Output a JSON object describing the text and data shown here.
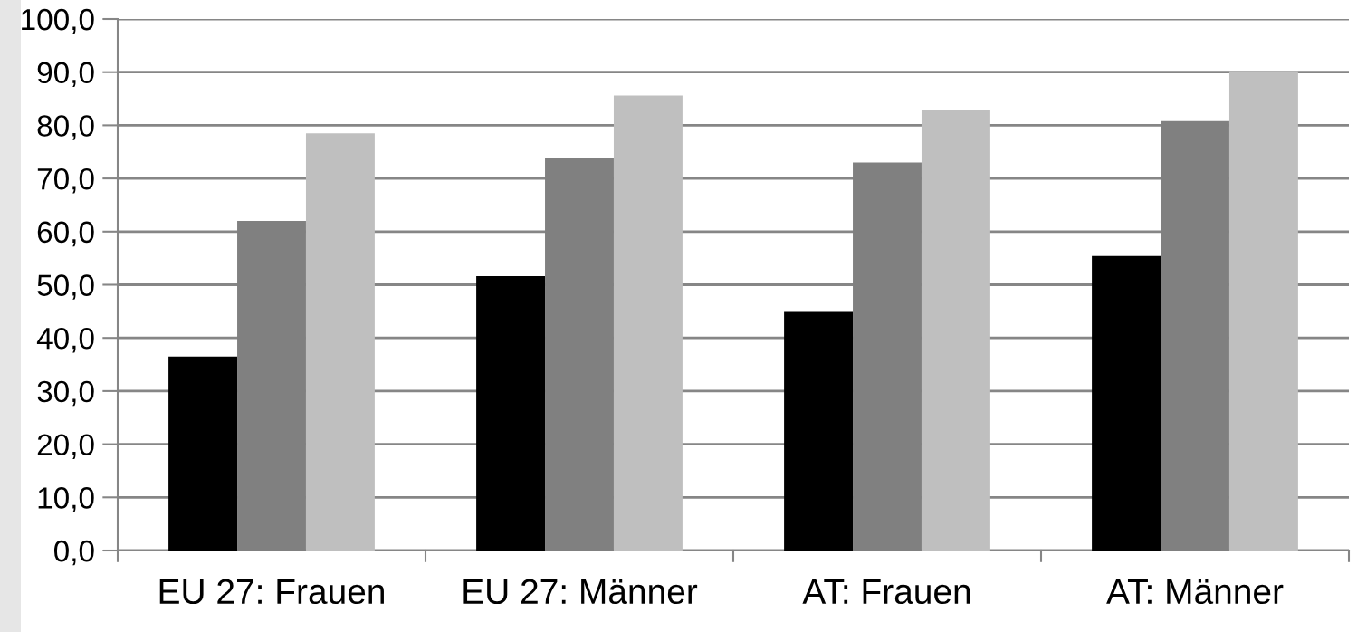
{
  "chart_data": {
    "type": "bar",
    "categories": [
      "EU 27: Frauen",
      "EU 27: Männer",
      "AT: Frauen",
      "AT: Männer"
    ],
    "series": [
      {
        "color": "#000000",
        "values": [
          36.5,
          51.6,
          44.9,
          55.4
        ]
      },
      {
        "color": "#808080",
        "values": [
          62.0,
          73.8,
          73.0,
          80.8
        ]
      },
      {
        "color": "#bfbfbf",
        "values": [
          78.5,
          85.6,
          82.8,
          90.2
        ]
      }
    ],
    "ylim": [
      0,
      100
    ],
    "yticks": [
      {
        "value": 0,
        "label": "0,0"
      },
      {
        "value": 10,
        "label": "10,0"
      },
      {
        "value": 20,
        "label": "20,0"
      },
      {
        "value": 30,
        "label": "30,0"
      },
      {
        "value": 40,
        "label": "40,0"
      },
      {
        "value": 50,
        "label": "50,0"
      },
      {
        "value": 60,
        "label": "60,0"
      },
      {
        "value": 70,
        "label": "70,0"
      },
      {
        "value": 80,
        "label": "80,0"
      },
      {
        "value": 90,
        "label": "90,0"
      },
      {
        "value": 100,
        "label": "100,0"
      }
    ],
    "grid": "y"
  }
}
